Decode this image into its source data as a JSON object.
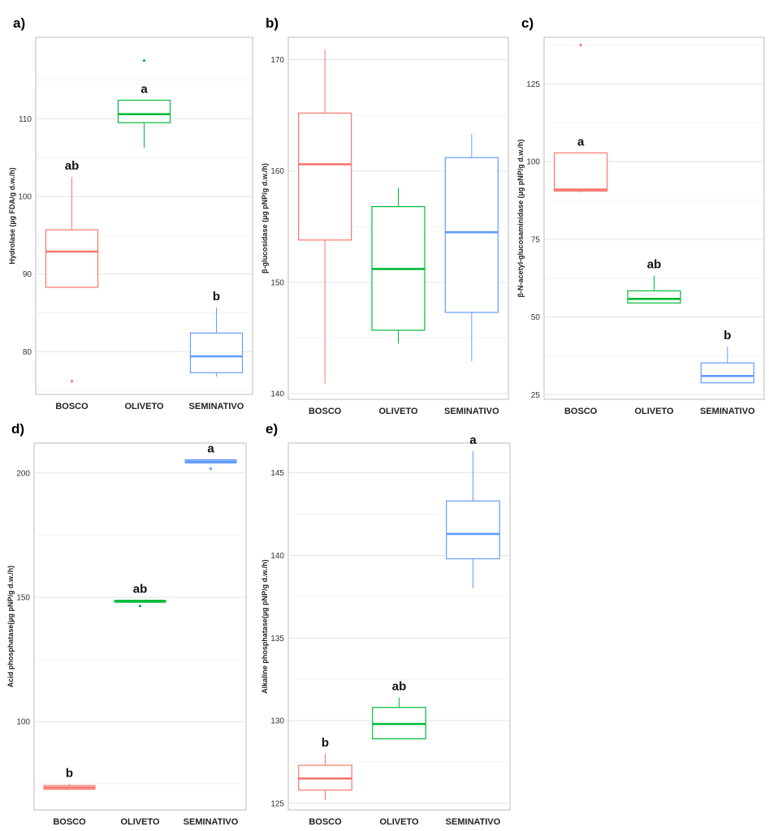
{
  "colors": {
    "BOSCO": "#f8766d",
    "OLIVETO": "#00ba38",
    "SEMINATIVO": "#619cff"
  },
  "chart_data": [
    {
      "type": "boxplot",
      "panel": "a)",
      "ylabel": "Hydrolase (µg FDA/g d.w./h)",
      "categories": [
        "BOSCO",
        "OLIVETO",
        "SEMINATIVO"
      ],
      "ylim": [
        74.5,
        120.5
      ],
      "yticks": [
        80,
        90,
        100,
        110
      ],
      "boxes": [
        {
          "category": "BOSCO",
          "min": 88.3,
          "q1": 88.3,
          "median": 92.9,
          "q3": 95.7,
          "max": 102.5,
          "outliers": [
            76.2
          ],
          "label": "ab"
        },
        {
          "category": "OLIVETO",
          "min": 106.3,
          "q1": 109.5,
          "median": 110.6,
          "q3": 112.4,
          "max": 112.4,
          "outliers": [
            117.5
          ],
          "label": "a"
        },
        {
          "category": "SEMINATIVO",
          "min": 76.8,
          "q1": 77.3,
          "median": 79.4,
          "q3": 82.4,
          "max": 85.7,
          "outliers": [],
          "label": "b"
        }
      ]
    },
    {
      "type": "boxplot",
      "panel": "b)",
      "ylabel": "β-glucosidase (µg pNP/g d.w./h)",
      "categories": [
        "BOSCO",
        "OLIVETO",
        "SEMINATIVO"
      ],
      "ylim": [
        139.5,
        172.0
      ],
      "yticks": [
        140,
        150,
        160,
        170
      ],
      "boxes": [
        {
          "category": "BOSCO",
          "min": 140.9,
          "q1": 153.8,
          "median": 160.6,
          "q3": 165.2,
          "max": 170.9,
          "outliers": [],
          "label": ""
        },
        {
          "category": "OLIVETO",
          "min": 144.5,
          "q1": 145.7,
          "median": 151.2,
          "q3": 156.8,
          "max": 158.5,
          "outliers": [],
          "label": ""
        },
        {
          "category": "SEMINATIVO",
          "min": 142.9,
          "q1": 147.3,
          "median": 154.5,
          "q3": 161.2,
          "max": 163.3,
          "outliers": [],
          "label": ""
        }
      ]
    },
    {
      "type": "boxplot",
      "panel": "c)",
      "ylabel": "β-N-acetyl-glucosaminidase (µg pNP/g d.w./h)",
      "categories": [
        "BOSCO",
        "OLIVETO",
        "SEMINATIVO"
      ],
      "ylim": [
        23.5,
        140.0
      ],
      "yticks": [
        25,
        50,
        75,
        100,
        125
      ],
      "boxes": [
        {
          "category": "BOSCO",
          "min": 90.0,
          "q1": 90.5,
          "median": 91.0,
          "q3": 102.8,
          "max": 102.8,
          "outliers": [
            137.5
          ],
          "label": "a"
        },
        {
          "category": "OLIVETO",
          "min": 54.5,
          "q1": 54.5,
          "median": 55.8,
          "q3": 58.4,
          "max": 63.3,
          "outliers": [],
          "label": "ab"
        },
        {
          "category": "SEMINATIVO",
          "min": 28.8,
          "q1": 28.8,
          "median": 31.0,
          "q3": 35.2,
          "max": 40.5,
          "outliers": [],
          "label": "b"
        }
      ]
    },
    {
      "type": "boxplot",
      "panel": "d)",
      "ylabel": "Acid phosphatase(µg pNP/g d.w./h)",
      "categories": [
        "BOSCO",
        "OLIVETO",
        "SEMINATIVO"
      ],
      "ylim": [
        64.5,
        212.0
      ],
      "yticks": [
        100,
        150,
        200
      ],
      "boxes": [
        {
          "category": "BOSCO",
          "min": 72.8,
          "q1": 72.8,
          "median": 73.5,
          "q3": 74.3,
          "max": 74.8,
          "outliers": [],
          "label": "b"
        },
        {
          "category": "OLIVETO",
          "min": 148.0,
          "q1": 148.0,
          "median": 148.4,
          "q3": 148.8,
          "max": 148.8,
          "outliers": [
            146.5
          ],
          "label": "ab"
        },
        {
          "category": "SEMINATIVO",
          "min": 204.0,
          "q1": 204.0,
          "median": 204.6,
          "q3": 205.3,
          "max": 205.3,
          "outliers": [
            201.7
          ],
          "label": "a"
        }
      ]
    },
    {
      "type": "boxplot",
      "panel": "e)",
      "ylabel": "Alkaline phosphatase(µg pNP/g d.w./h)",
      "categories": [
        "BOSCO",
        "OLIVETO",
        "SEMINATIVO"
      ],
      "ylim": [
        124.6,
        146.8
      ],
      "yticks": [
        125,
        130,
        135,
        140,
        145
      ],
      "boxes": [
        {
          "category": "BOSCO",
          "min": 125.2,
          "q1": 125.8,
          "median": 126.5,
          "q3": 127.3,
          "max": 128.0,
          "outliers": [],
          "label": "b"
        },
        {
          "category": "OLIVETO",
          "min": 128.9,
          "q1": 128.9,
          "median": 129.8,
          "q3": 130.8,
          "max": 131.4,
          "outliers": [],
          "label": "ab"
        },
        {
          "category": "SEMINATIVO",
          "min": 138.0,
          "q1": 139.8,
          "median": 141.3,
          "q3": 143.3,
          "max": 146.3,
          "outliers": [],
          "label": "a"
        }
      ]
    }
  ]
}
